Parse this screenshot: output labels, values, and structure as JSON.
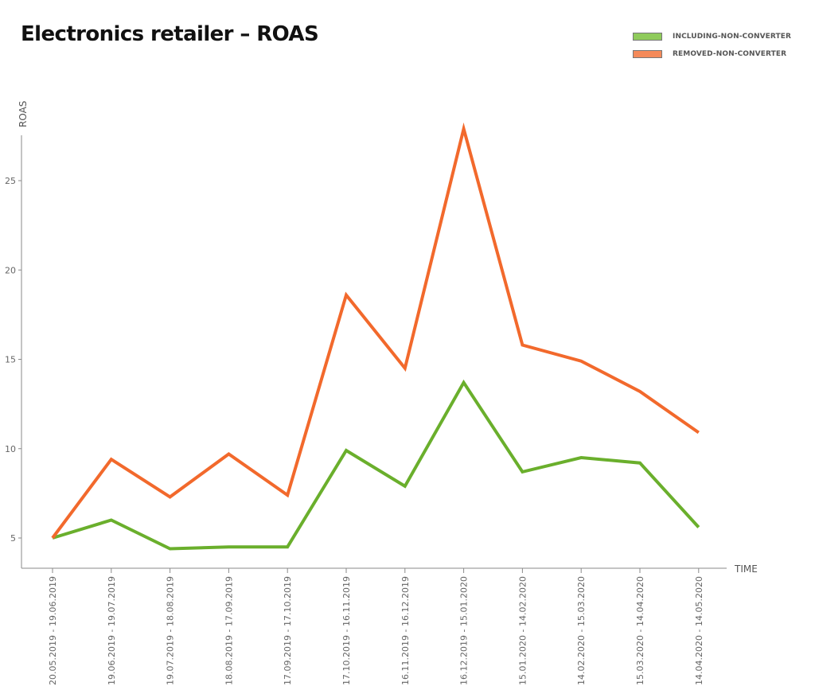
{
  "chart_data": {
    "type": "line",
    "title": "Electronics retailer – ROAS",
    "xlabel": "TIME",
    "ylabel": "ROAS",
    "categories": [
      "20.05.2019 - 19.06.2019",
      "19.06.2019 - 19.07.2019",
      "19.07.2019 - 18.08.2019",
      "18.08.2019 - 17.09.2019",
      "17.09.2019 - 17.10.2019",
      "17.10.2019 - 16.11.2019",
      "16.11.2019 - 16.12.2019",
      "16.12.2019 - 15.01.2020",
      "15.01.2020 - 14.02.2020",
      "14.02.2020 - 15.03.2020",
      "15.03.2020 - 14.04.2020",
      "14.04.2020 - 14.05.2020"
    ],
    "series": [
      {
        "name": "INCLUDING-NON-CONVERTER",
        "color": "#6aaf2c",
        "values": [
          5.0,
          6.0,
          4.4,
          4.5,
          4.5,
          9.9,
          7.9,
          13.7,
          8.7,
          9.5,
          9.2,
          5.6
        ]
      },
      {
        "name": "REMOVED-NON-CONVERTER",
        "color": "#f2692c",
        "values": [
          5.0,
          9.4,
          7.3,
          9.7,
          7.4,
          18.6,
          14.5,
          27.9,
          15.8,
          14.9,
          13.2,
          10.9
        ]
      }
    ],
    "yticks": [
      5,
      10,
      15,
      20,
      25
    ],
    "ylim": [
      3.3,
      28.8
    ],
    "grid": false,
    "legend_position": "top-right"
  }
}
